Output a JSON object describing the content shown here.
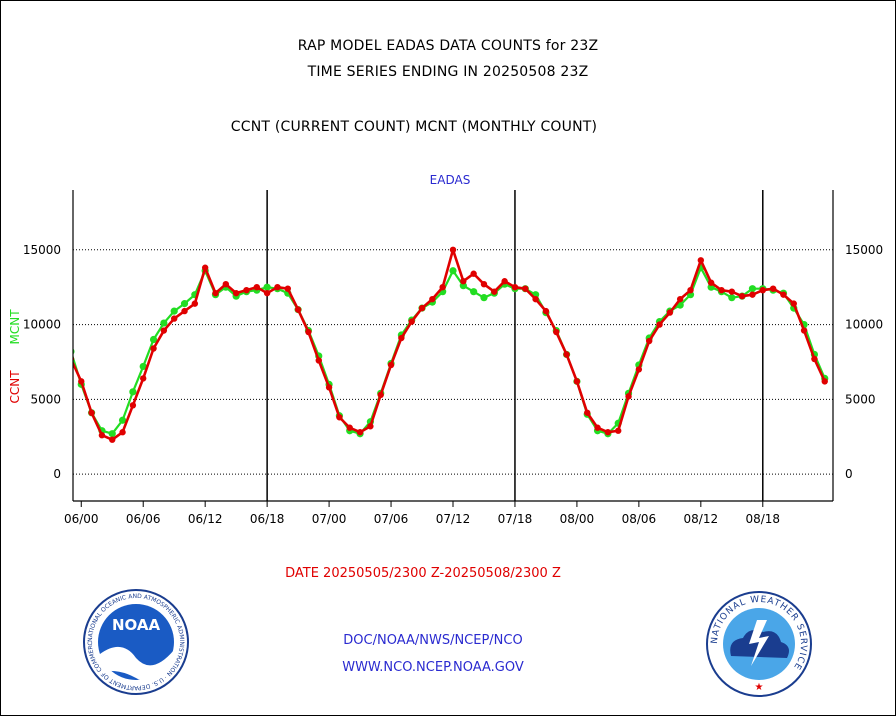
{
  "header": {
    "title_line1": "RAP MODEL EADAS DATA COUNTS for 23Z",
    "title_line2": "TIME SERIES ENDING IN 20250508 23Z",
    "subtitle": "CCNT (CURRENT COUNT) MCNT (MONTHLY COUNT)"
  },
  "footer": {
    "date_range": "DATE 20250505/2300 Z-20250508/2300 Z",
    "org_path": "DOC/NOAA/NWS/NCEP/NCO",
    "website": "WWW.NCO.NCEP.NOAA.GOV"
  },
  "logos": {
    "noaa_text": "NOAA",
    "noaa_ring": "NATIONAL OCEANIC AND ATMOSPHERIC ADMINISTRATION · U.S. DEPARTMENT OF COMMERCE",
    "nws_ring": "NATIONAL WEATHER SERVICE"
  },
  "colors": {
    "ccnt": "#e00000",
    "mcnt": "#22dd22",
    "panel_title": "#2a2ad0",
    "date": "#e00000"
  },
  "chart_data": {
    "type": "line",
    "title": "EADAS",
    "xlabel": "",
    "ylabel_series": [
      "CCNT",
      "MCNT"
    ],
    "ylim": [
      -1800,
      19000
    ],
    "yticks": [
      0,
      5000,
      10000,
      15000
    ],
    "grid": true,
    "x_unit": "hours since 06/00",
    "xlim": [
      -0.8,
      72.8
    ],
    "xticks": [
      {
        "x": 0,
        "label": "06/00"
      },
      {
        "x": 6,
        "label": "06/06"
      },
      {
        "x": 12,
        "label": "06/12"
      },
      {
        "x": 18,
        "label": "06/18"
      },
      {
        "x": 24,
        "label": "07/00"
      },
      {
        "x": 30,
        "label": "07/06"
      },
      {
        "x": 36,
        "label": "07/12"
      },
      {
        "x": 42,
        "label": "07/18"
      },
      {
        "x": 48,
        "label": "08/00"
      },
      {
        "x": 54,
        "label": "08/06"
      },
      {
        "x": 60,
        "label": "08/12"
      },
      {
        "x": 66,
        "label": "08/18"
      }
    ],
    "day_boundaries": [
      18,
      42,
      66
    ],
    "series": [
      {
        "name": "CCNT",
        "color": "#e00000",
        "x": [
          -1,
          0,
          1,
          2,
          3,
          4,
          5,
          6,
          7,
          8,
          9,
          10,
          11,
          12,
          13,
          14,
          15,
          16,
          17,
          18,
          19,
          20,
          21,
          22,
          23,
          24,
          25,
          26,
          27,
          28,
          29,
          30,
          31,
          32,
          33,
          34,
          35,
          36,
          37,
          38,
          39,
          40,
          41,
          42,
          43,
          44,
          45,
          46,
          47,
          48,
          49,
          50,
          51,
          52,
          53,
          54,
          55,
          56,
          57,
          58,
          59,
          60,
          61,
          62,
          63,
          64,
          65,
          66,
          67,
          68,
          69,
          70,
          71,
          72
        ],
        "values": [
          7700,
          6200,
          4100,
          2600,
          2300,
          2800,
          4600,
          6400,
          8400,
          9600,
          10400,
          10900,
          11400,
          13800,
          12100,
          12700,
          12100,
          12300,
          12500,
          12100,
          12500,
          12400,
          11000,
          9500,
          7600,
          5800,
          3800,
          3100,
          2800,
          3200,
          5300,
          7300,
          9100,
          10200,
          11100,
          11700,
          12500,
          15000,
          12900,
          13400,
          12700,
          12200,
          12900,
          12500,
          12400,
          11700,
          10900,
          9500,
          8000,
          6200,
          4100,
          3100,
          2800,
          2900,
          5200,
          7000,
          8900,
          10000,
          10800,
          11700,
          12300,
          14300,
          12800,
          12300,
          12200,
          11900,
          12000,
          12300,
          12400,
          12000,
          11400,
          9600,
          7700,
          6200
        ]
      },
      {
        "name": "MCNT",
        "color": "#22dd22",
        "x": [
          -1,
          0,
          1,
          2,
          3,
          4,
          5,
          6,
          7,
          8,
          9,
          10,
          11,
          12,
          13,
          14,
          15,
          16,
          17,
          18,
          19,
          20,
          21,
          22,
          23,
          24,
          25,
          26,
          27,
          28,
          29,
          30,
          31,
          32,
          33,
          34,
          35,
          36,
          37,
          38,
          39,
          40,
          41,
          42,
          43,
          44,
          45,
          46,
          47,
          48,
          49,
          50,
          51,
          52,
          53,
          54,
          55,
          56,
          57,
          58,
          59,
          60,
          61,
          62,
          63,
          64,
          65,
          66,
          67,
          68,
          69,
          70,
          71,
          72
        ],
        "values": [
          8200,
          6000,
          4100,
          2900,
          2700,
          3600,
          5500,
          7200,
          9000,
          10100,
          10900,
          11400,
          12000,
          13600,
          12000,
          12500,
          11900,
          12200,
          12300,
          12500,
          12400,
          12100,
          11000,
          9600,
          7900,
          6000,
          3900,
          2900,
          2700,
          3500,
          5400,
          7400,
          9300,
          10300,
          11100,
          11500,
          12200,
          13600,
          12600,
          12200,
          11800,
          12100,
          12700,
          12400,
          12400,
          12000,
          10800,
          9600,
          8000,
          6200,
          4000,
          2900,
          2700,
          3400,
          5400,
          7300,
          9100,
          10200,
          10900,
          11300,
          12000,
          13800,
          12500,
          12200,
          11800,
          11900,
          12400,
          12400,
          12300,
          12100,
          11100,
          10000,
          8000,
          6400
        ]
      }
    ]
  }
}
